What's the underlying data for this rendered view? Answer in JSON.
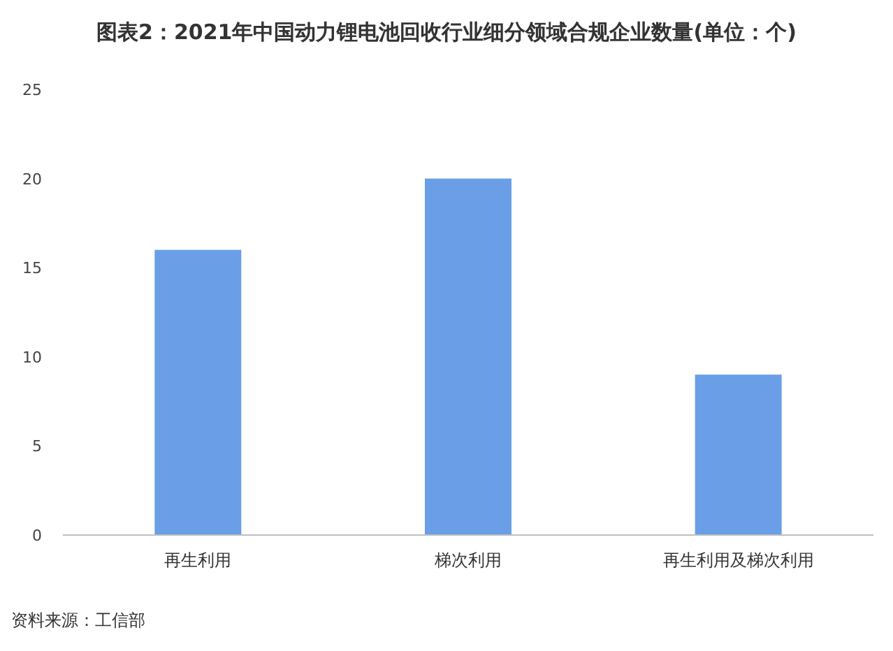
{
  "chart_data": {
    "type": "bar",
    "title": "图表2：2021年中国动力锂电池回收行业细分领域合规企业数量(单位：个)",
    "categories": [
      "再生利用",
      "梯次利用",
      "再生利用及梯次利用"
    ],
    "values": [
      16,
      20,
      9
    ],
    "color": "#6a9fe8",
    "ylim": [
      0,
      25
    ],
    "yticks": [
      0,
      5,
      10,
      15,
      20,
      25
    ],
    "annotations": [
      "资料来源：工信部"
    ]
  }
}
